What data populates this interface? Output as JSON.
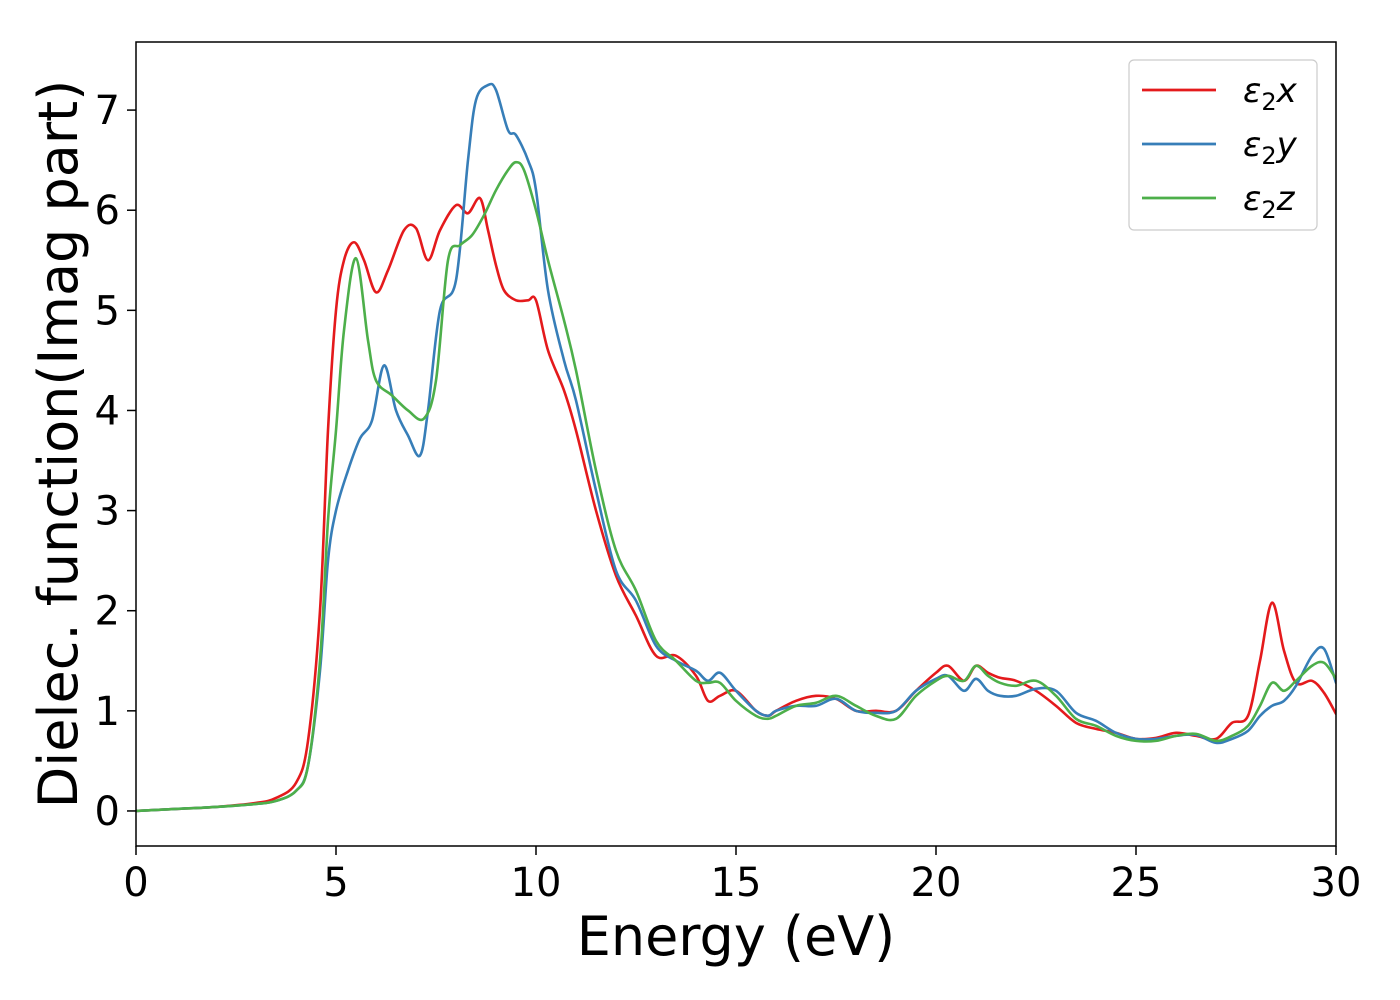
{
  "chart_data": {
    "type": "line",
    "title": "",
    "xlabel": "Energy (eV)",
    "ylabel": "Dielec. function(Imag part)",
    "xlim": [
      0,
      30
    ],
    "ylim": [
      -0.35,
      7.68
    ],
    "xticks": [
      0,
      5,
      10,
      15,
      20,
      25,
      30
    ],
    "yticks": [
      0,
      1,
      2,
      3,
      4,
      5,
      6,
      7
    ],
    "grid": false,
    "legend_position": "top-right",
    "series": [
      {
        "name": "ε₂x",
        "legend": {
          "base": "ε",
          "sub": "2",
          "suffix": "x"
        },
        "color": "#e41a1c",
        "x": [
          0,
          1,
          2,
          3,
          3.5,
          4,
          4.3,
          4.6,
          4.8,
          5.0,
          5.2,
          5.45,
          5.7,
          6.0,
          6.3,
          6.7,
          7.0,
          7.3,
          7.6,
          8.0,
          8.3,
          8.6,
          8.8,
          9.0,
          9.2,
          9.5,
          9.8,
          10.0,
          10.3,
          10.7,
          11.0,
          11.5,
          12.0,
          12.5,
          13.0,
          13.5,
          14.0,
          14.3,
          14.6,
          15.0,
          15.5,
          15.8,
          16.0,
          16.5,
          17.0,
          17.5,
          18.0,
          18.5,
          19.0,
          19.5,
          20.0,
          20.3,
          20.7,
          21.0,
          21.3,
          21.6,
          22.0,
          22.5,
          23.0,
          23.5,
          24.0,
          24.5,
          25.0,
          25.5,
          26.0,
          26.5,
          27.0,
          27.4,
          27.8,
          28.1,
          28.4,
          28.7,
          29.0,
          29.4,
          29.7,
          30.0
        ],
        "y": [
          0,
          0.02,
          0.04,
          0.08,
          0.13,
          0.28,
          0.7,
          2.0,
          3.8,
          5.0,
          5.5,
          5.68,
          5.5,
          5.18,
          5.4,
          5.8,
          5.82,
          5.5,
          5.8,
          6.05,
          5.97,
          6.12,
          5.8,
          5.45,
          5.2,
          5.1,
          5.1,
          5.1,
          4.6,
          4.2,
          3.8,
          3.0,
          2.35,
          1.95,
          1.55,
          1.55,
          1.35,
          1.1,
          1.15,
          1.2,
          1.0,
          0.95,
          1.0,
          1.1,
          1.15,
          1.12,
          1.0,
          1.0,
          1.0,
          1.2,
          1.38,
          1.45,
          1.3,
          1.45,
          1.38,
          1.33,
          1.3,
          1.2,
          1.05,
          0.88,
          0.82,
          0.78,
          0.72,
          0.73,
          0.78,
          0.75,
          0.72,
          0.88,
          0.95,
          1.5,
          2.08,
          1.6,
          1.28,
          1.3,
          1.18,
          0.97
        ]
      },
      {
        "name": "ε₂y",
        "legend": {
          "base": "ε",
          "sub": "2",
          "suffix": "y"
        },
        "color": "#377eb8",
        "x": [
          0,
          1,
          2,
          3,
          3.5,
          4,
          4.3,
          4.6,
          4.8,
          5.0,
          5.3,
          5.6,
          5.9,
          6.2,
          6.5,
          6.8,
          7.1,
          7.3,
          7.6,
          8.0,
          8.3,
          8.5,
          8.8,
          9.0,
          9.3,
          9.5,
          9.8,
          10.0,
          10.3,
          10.7,
          11.0,
          11.5,
          12.0,
          12.5,
          13.0,
          13.5,
          14.0,
          14.3,
          14.6,
          15.0,
          15.5,
          15.8,
          16.0,
          16.5,
          17.0,
          17.5,
          18.0,
          18.5,
          19.0,
          19.5,
          20.0,
          20.3,
          20.7,
          21.0,
          21.3,
          21.6,
          22.0,
          22.5,
          23.0,
          23.5,
          24.0,
          24.5,
          25.0,
          25.5,
          26.0,
          26.5,
          27.0,
          27.4,
          27.8,
          28.1,
          28.4,
          28.7,
          29.0,
          29.4,
          29.7,
          30.0
        ],
        "y": [
          0,
          0.02,
          0.04,
          0.07,
          0.1,
          0.2,
          0.45,
          1.4,
          2.5,
          3.0,
          3.4,
          3.72,
          3.9,
          4.45,
          4.0,
          3.75,
          3.55,
          4.0,
          5.0,
          5.3,
          6.5,
          7.1,
          7.25,
          7.2,
          6.8,
          6.75,
          6.5,
          6.2,
          5.2,
          4.5,
          4.1,
          3.2,
          2.4,
          2.1,
          1.65,
          1.5,
          1.4,
          1.3,
          1.38,
          1.2,
          1.0,
          0.95,
          1.0,
          1.05,
          1.05,
          1.12,
          1.0,
          0.98,
          1.0,
          1.2,
          1.32,
          1.35,
          1.2,
          1.32,
          1.2,
          1.15,
          1.15,
          1.22,
          1.2,
          0.98,
          0.9,
          0.78,
          0.72,
          0.72,
          0.75,
          0.76,
          0.68,
          0.72,
          0.8,
          0.95,
          1.05,
          1.1,
          1.25,
          1.55,
          1.62,
          1.28
        ]
      },
      {
        "name": "ε₂z",
        "legend": {
          "base": "ε",
          "sub": "2",
          "suffix": "z"
        },
        "color": "#4daf4a",
        "x": [
          0,
          1,
          2,
          3,
          3.5,
          4,
          4.3,
          4.6,
          4.8,
          5.0,
          5.2,
          5.5,
          5.8,
          6.0,
          6.4,
          6.8,
          7.2,
          7.5,
          7.8,
          8.1,
          8.4,
          8.7,
          9.0,
          9.3,
          9.5,
          9.7,
          10.0,
          10.3,
          10.7,
          11.0,
          11.5,
          12.0,
          12.5,
          13.0,
          13.5,
          14.0,
          14.3,
          14.6,
          15.0,
          15.5,
          15.8,
          16.0,
          16.5,
          17.0,
          17.5,
          18.0,
          18.5,
          19.0,
          19.5,
          20.0,
          20.3,
          20.7,
          21.0,
          21.3,
          21.6,
          22.0,
          22.5,
          23.0,
          23.5,
          24.0,
          24.5,
          25.0,
          25.5,
          26.0,
          26.5,
          27.0,
          27.4,
          27.8,
          28.1,
          28.4,
          28.7,
          29.0,
          29.4,
          29.7,
          30.0
        ],
        "y": [
          0,
          0.02,
          0.04,
          0.07,
          0.1,
          0.2,
          0.45,
          1.5,
          2.9,
          3.8,
          4.8,
          5.52,
          4.7,
          4.3,
          4.15,
          4.0,
          3.92,
          4.3,
          5.5,
          5.65,
          5.75,
          5.95,
          6.2,
          6.4,
          6.48,
          6.4,
          6.0,
          5.5,
          4.9,
          4.4,
          3.4,
          2.6,
          2.2,
          1.7,
          1.5,
          1.3,
          1.28,
          1.28,
          1.1,
          0.95,
          0.92,
          0.95,
          1.05,
          1.08,
          1.15,
          1.05,
          0.95,
          0.92,
          1.15,
          1.3,
          1.35,
          1.3,
          1.45,
          1.35,
          1.28,
          1.25,
          1.3,
          1.15,
          0.92,
          0.85,
          0.75,
          0.7,
          0.7,
          0.75,
          0.77,
          0.7,
          0.75,
          0.85,
          1.05,
          1.28,
          1.2,
          1.3,
          1.45,
          1.48,
          1.32
        ]
      }
    ]
  }
}
